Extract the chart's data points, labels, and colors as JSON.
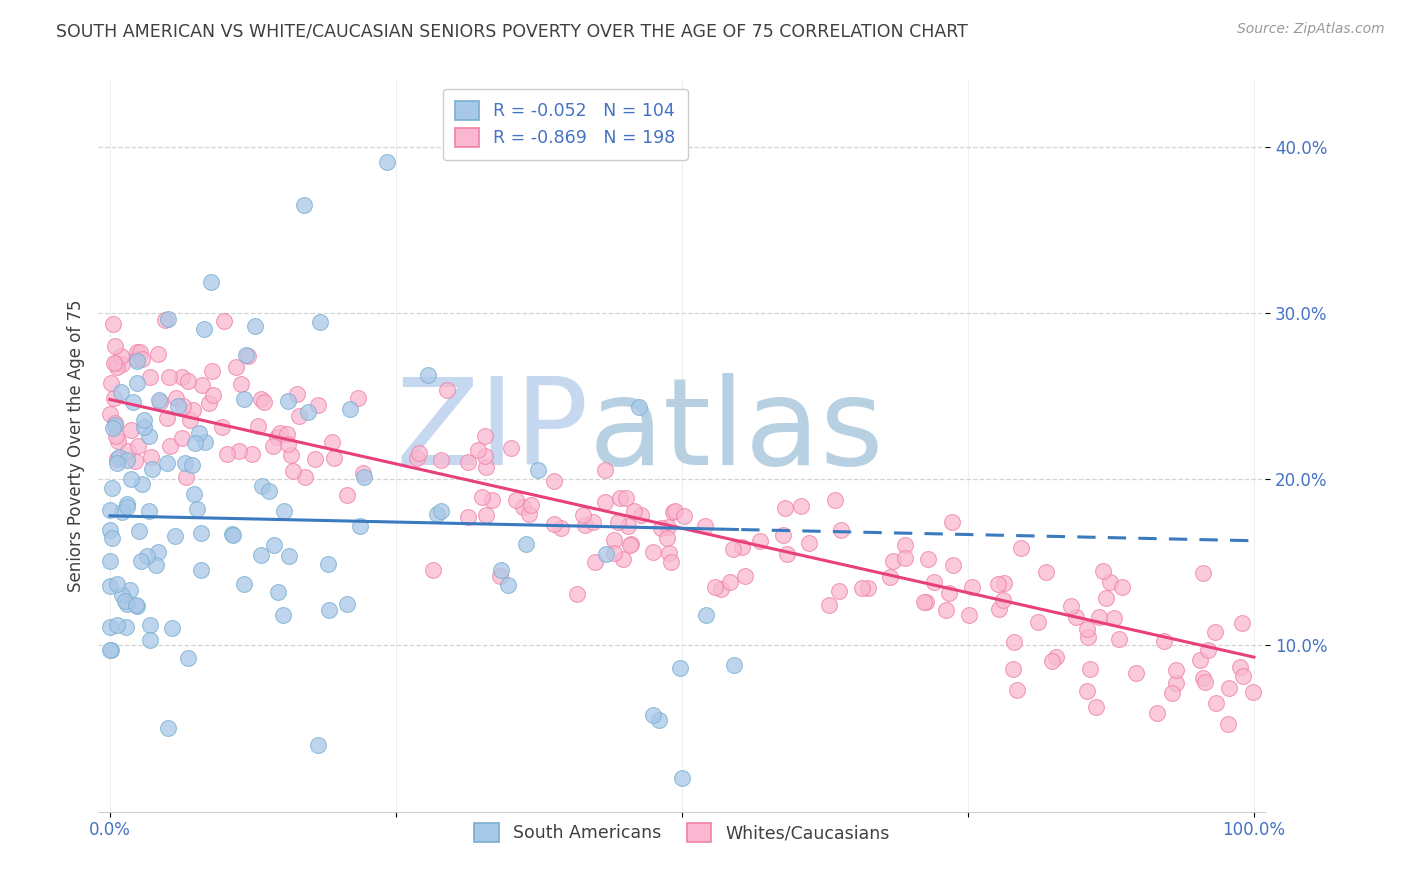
{
  "title": "SOUTH AMERICAN VS WHITE/CAUCASIAN SENIORS POVERTY OVER THE AGE OF 75 CORRELATION CHART",
  "source": "Source: ZipAtlas.com",
  "ylabel": "Seniors Poverty Over the Age of 75",
  "yticks": [
    0.1,
    0.2,
    0.3,
    0.4
  ],
  "ytick_labels": [
    "10.0%",
    "20.0%",
    "30.0%",
    "40.0%"
  ],
  "blue_R": "-0.052",
  "blue_N": "104",
  "pink_R": "-0.869",
  "pink_N": "198",
  "blue_scatter_color": "#a8c8e8",
  "blue_edge_color": "#7aaed0",
  "pink_scatter_color": "#f9b8d0",
  "pink_edge_color": "#f080a8",
  "trend_blue": "#3a7abf",
  "trend_pink": "#e8407a",
  "watermark_zip": "ZIP",
  "watermark_atlas": "atlas",
  "watermark_color_zip": "#c5d8f0",
  "watermark_color_atlas": "#b8d8e8",
  "title_color": "#404040",
  "tick_color": "#4472C4",
  "grid_color": "#d0d0d0",
  "background_color": "#ffffff",
  "legend_label_color": "#222222",
  "legend_value_color": "#4472C4"
}
